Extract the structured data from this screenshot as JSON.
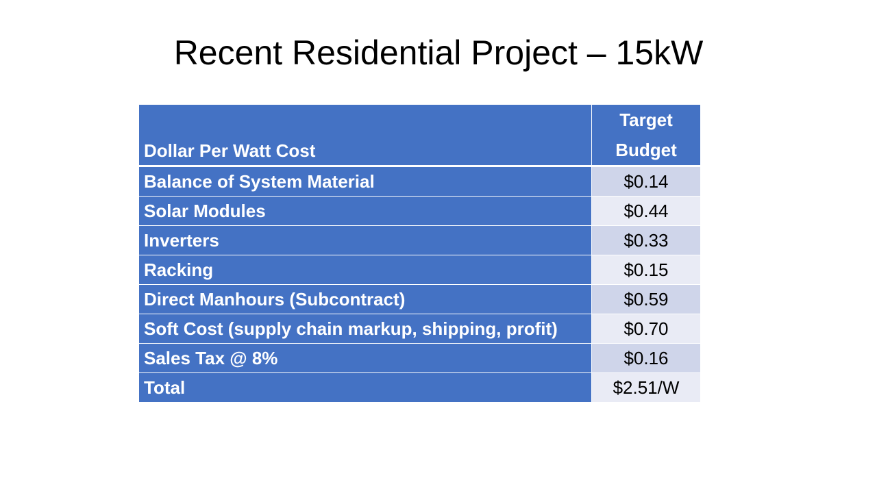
{
  "title": "Recent Residential Project – 15kW",
  "table": {
    "headers": [
      "Dollar Per Watt Cost",
      "Target Budget"
    ],
    "rows": [
      [
        "Balance of System Material",
        "$0.14"
      ],
      [
        "Solar Modules",
        "$0.44"
      ],
      [
        "Inverters",
        "$0.33"
      ],
      [
        "Racking",
        "$0.15"
      ],
      [
        "Direct Manhours (Subcontract)",
        "$0.59"
      ],
      [
        "Soft Cost (supply chain markup, shipping, profit)",
        "$0.70"
      ],
      [
        "Sales Tax @ 8%",
        "$0.16"
      ],
      [
        "Total",
        "$2.51/W"
      ]
    ]
  },
  "colors": {
    "header": "#4472C4",
    "band_odd": "#CFD5EA",
    "band_even": "#E9EBF5"
  }
}
